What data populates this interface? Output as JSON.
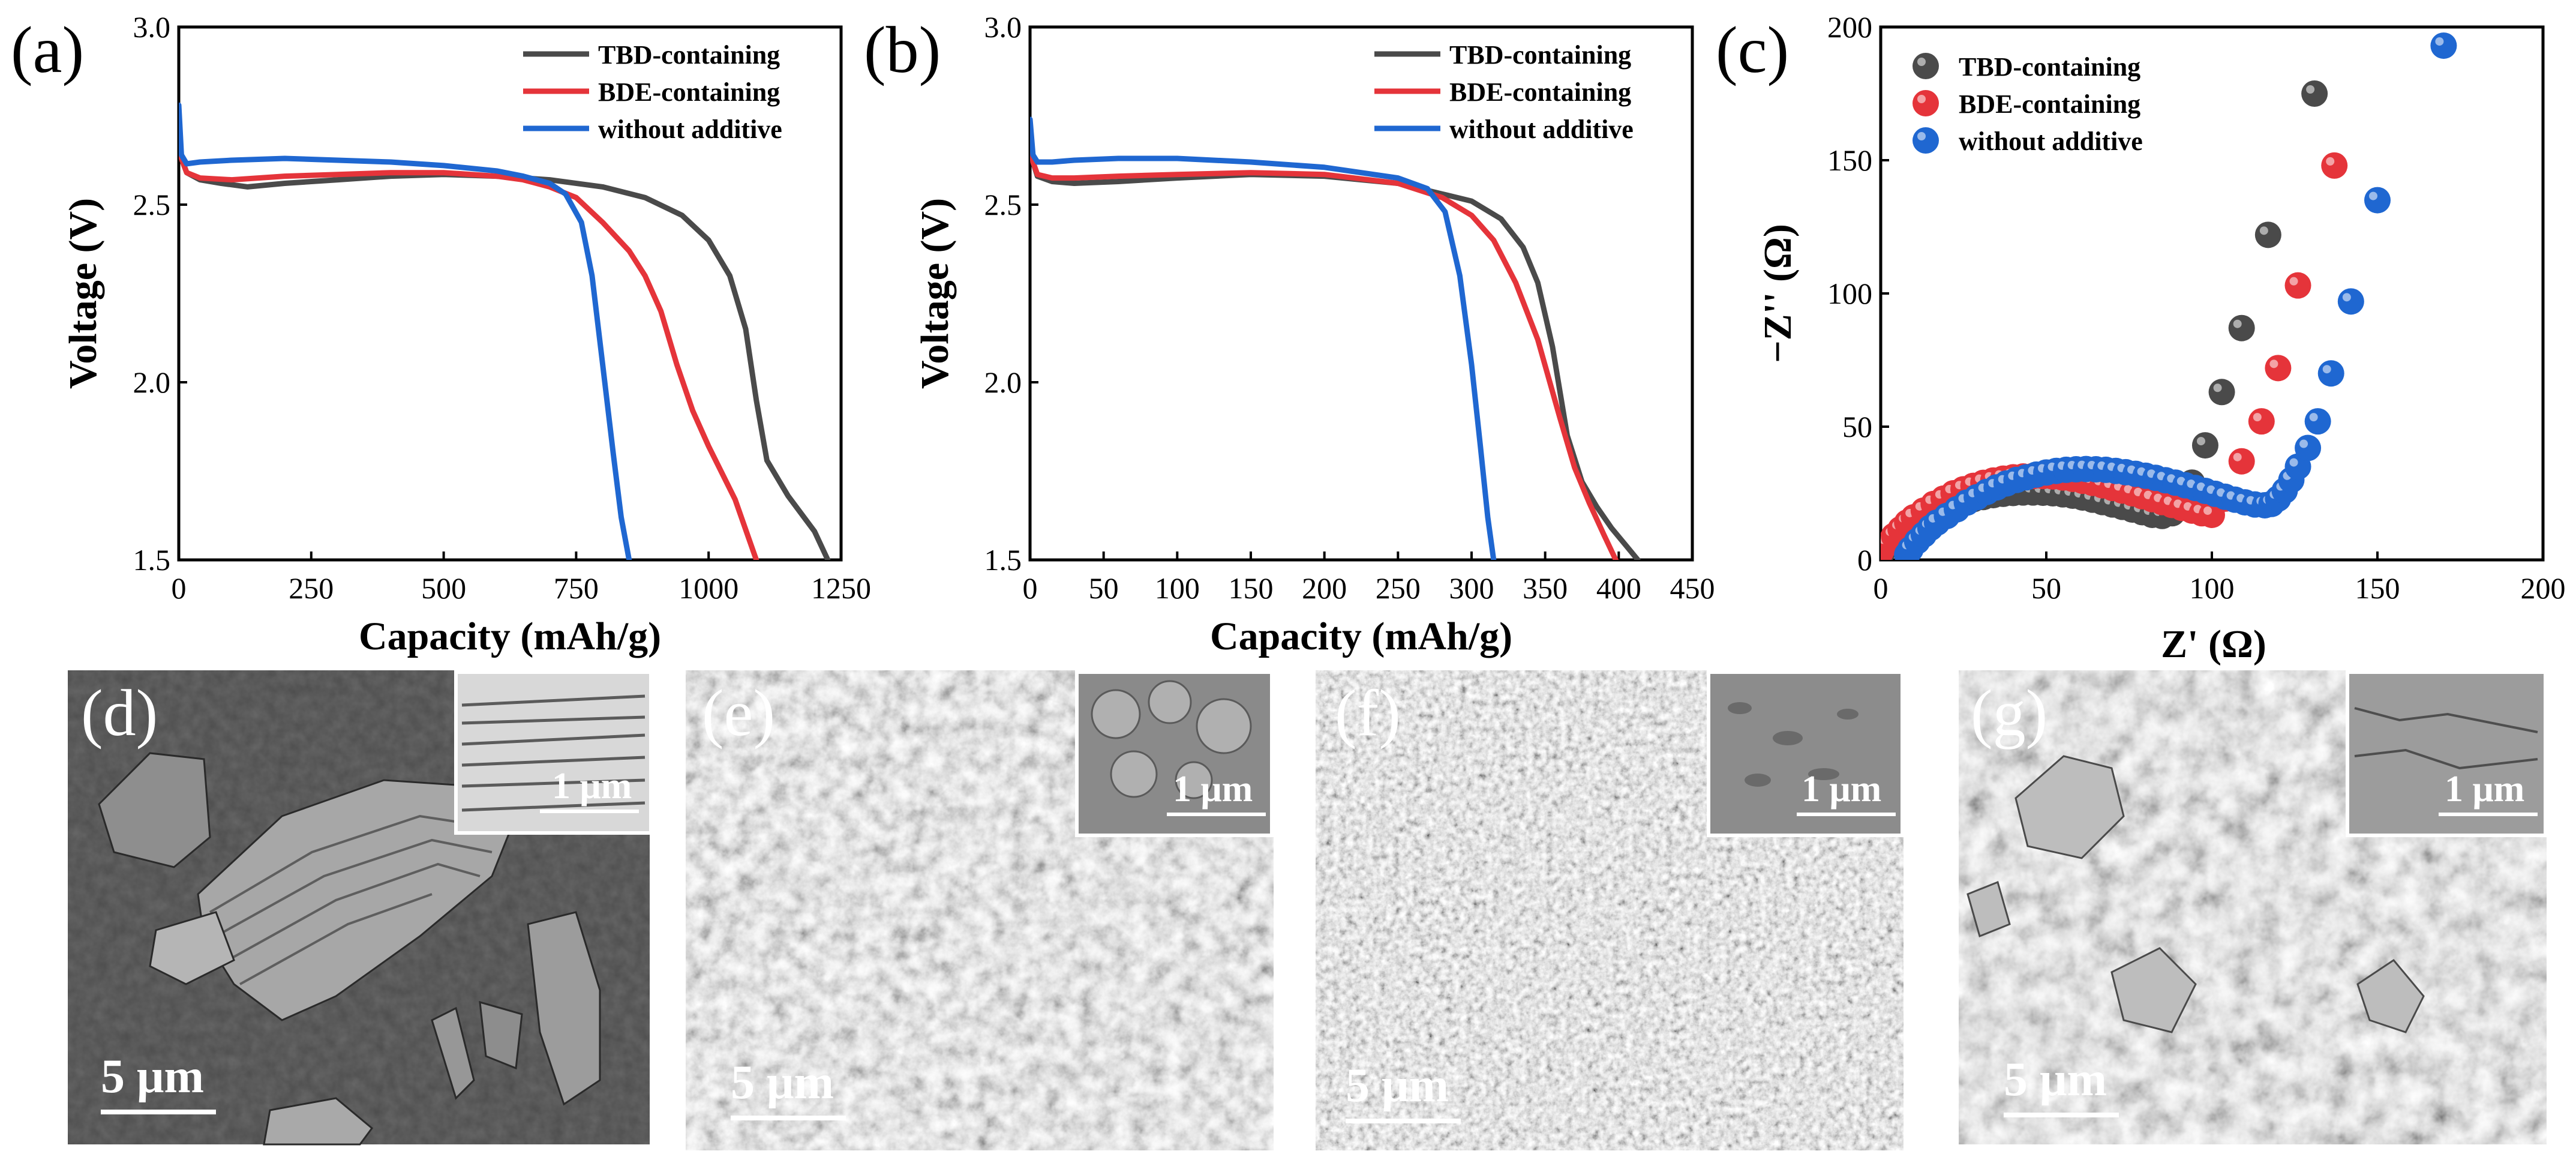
{
  "chart_data": [
    {
      "panel": "(a)",
      "type": "line",
      "xlabel": "Capacity (mAh/g)",
      "ylabel": "Voltage (V)",
      "xlim": [
        0,
        1250
      ],
      "ylim": [
        1.5,
        3.0
      ],
      "xticks": [
        0,
        250,
        500,
        750,
        1000,
        1250
      ],
      "yticks": [
        1.5,
        2.0,
        2.5,
        3.0
      ],
      "legend_position": "top-right",
      "series": [
        {
          "name": "TBD-containing",
          "color": "#4a4a4a",
          "x": [
            0,
            5,
            15,
            40,
            80,
            130,
            200,
            300,
            400,
            500,
            600,
            700,
            800,
            880,
            950,
            1000,
            1040,
            1070,
            1090,
            1110,
            1150,
            1200,
            1225
          ],
          "y": [
            2.75,
            2.63,
            2.59,
            2.57,
            2.56,
            2.55,
            2.56,
            2.57,
            2.58,
            2.585,
            2.58,
            2.57,
            2.55,
            2.52,
            2.47,
            2.4,
            2.3,
            2.15,
            1.95,
            1.78,
            1.68,
            1.58,
            1.5
          ]
        },
        {
          "name": "BDE-containing",
          "color": "#e5343a",
          "x": [
            0,
            5,
            15,
            40,
            100,
            200,
            300,
            400,
            500,
            600,
            650,
            700,
            750,
            800,
            850,
            880,
            910,
            940,
            970,
            1000,
            1050,
            1090
          ],
          "y": [
            2.75,
            2.63,
            2.59,
            2.575,
            2.57,
            2.58,
            2.585,
            2.59,
            2.59,
            2.58,
            2.57,
            2.55,
            2.52,
            2.45,
            2.37,
            2.3,
            2.2,
            2.05,
            1.92,
            1.82,
            1.67,
            1.5
          ]
        },
        {
          "name": "without additive",
          "color": "#1f67d1",
          "x": [
            0,
            5,
            15,
            40,
            100,
            200,
            300,
            400,
            500,
            600,
            650,
            700,
            730,
            760,
            780,
            800,
            820,
            835,
            850
          ],
          "y": [
            2.78,
            2.64,
            2.615,
            2.62,
            2.625,
            2.63,
            2.625,
            2.62,
            2.61,
            2.595,
            2.58,
            2.56,
            2.53,
            2.45,
            2.3,
            2.05,
            1.8,
            1.62,
            1.5
          ]
        }
      ]
    },
    {
      "panel": "(b)",
      "type": "line",
      "xlabel": "Capacity (mAh/g)",
      "ylabel": "Voltage (V)",
      "xlim": [
        0,
        450
      ],
      "ylim": [
        1.5,
        3.0
      ],
      "xticks": [
        0,
        50,
        100,
        150,
        200,
        250,
        300,
        350,
        400,
        450
      ],
      "yticks": [
        1.5,
        2.0,
        2.5,
        3.0
      ],
      "legend_position": "top-right",
      "series": [
        {
          "name": "TBD-containing",
          "color": "#4a4a4a",
          "x": [
            0,
            2,
            5,
            15,
            30,
            60,
            100,
            150,
            200,
            250,
            280,
            300,
            320,
            335,
            345,
            355,
            365,
            375,
            385,
            395,
            405,
            413
          ],
          "y": [
            2.72,
            2.62,
            2.58,
            2.565,
            2.56,
            2.565,
            2.575,
            2.585,
            2.58,
            2.56,
            2.53,
            2.51,
            2.46,
            2.38,
            2.28,
            2.1,
            1.85,
            1.72,
            1.65,
            1.59,
            1.54,
            1.5
          ]
        },
        {
          "name": "BDE-containing",
          "color": "#e5343a",
          "x": [
            0,
            2,
            5,
            15,
            30,
            60,
            100,
            150,
            200,
            250,
            280,
            300,
            315,
            330,
            345,
            360,
            370,
            380,
            390,
            398
          ],
          "y": [
            2.7,
            2.62,
            2.585,
            2.575,
            2.575,
            2.58,
            2.585,
            2.59,
            2.585,
            2.56,
            2.52,
            2.47,
            2.4,
            2.28,
            2.12,
            1.9,
            1.76,
            1.66,
            1.57,
            1.5
          ]
        },
        {
          "name": "without additive",
          "color": "#1f67d1",
          "x": [
            0,
            2,
            5,
            15,
            30,
            60,
            100,
            150,
            200,
            250,
            270,
            282,
            292,
            300,
            306,
            311,
            315
          ],
          "y": [
            2.74,
            2.64,
            2.62,
            2.62,
            2.625,
            2.63,
            2.63,
            2.62,
            2.605,
            2.575,
            2.545,
            2.48,
            2.3,
            2.05,
            1.82,
            1.62,
            1.5
          ]
        }
      ]
    },
    {
      "panel": "(c)",
      "type": "scatter",
      "xlabel": "Z' (Ω)",
      "ylabel": "−Z'' (Ω)",
      "xlim": [
        0,
        200
      ],
      "ylim": [
        0,
        200
      ],
      "xticks": [
        0,
        50,
        100,
        150,
        200
      ],
      "yticks": [
        0,
        50,
        100,
        150,
        200
      ],
      "legend_position": "top-left",
      "series": [
        {
          "name": "TBD-containing",
          "color": "#4a4a4a",
          "radius": 8,
          "x": [
            0,
            2,
            4,
            6,
            8,
            10,
            13,
            16,
            19,
            22,
            25,
            28,
            31,
            34,
            37,
            40,
            43,
            46,
            49,
            52,
            55,
            58,
            61,
            64,
            67,
            70,
            73,
            76,
            79,
            82,
            85,
            88,
            91,
            94,
            98,
            103,
            109,
            117,
            131
          ],
          "y": [
            2,
            5,
            7,
            9,
            11,
            13,
            15,
            17,
            19,
            20.5,
            21.7,
            22.8,
            23.6,
            24.3,
            24.8,
            25.1,
            25.3,
            25.3,
            25.2,
            25,
            24.6,
            24.1,
            23.4,
            22.6,
            21.7,
            20.8,
            19.9,
            18.9,
            17.9,
            16.9,
            16.5,
            17.5,
            22,
            29,
            43,
            63,
            87,
            122,
            175
          ]
        },
        {
          "name": "BDE-containing",
          "color": "#e5343a",
          "radius": 8,
          "x": [
            0,
            2,
            4,
            6,
            8,
            10,
            13,
            16,
            19,
            22,
            25,
            28,
            31,
            34,
            37,
            40,
            43,
            46,
            49,
            52,
            55,
            58,
            61,
            64,
            67,
            70,
            73,
            76,
            79,
            82,
            85,
            88,
            91,
            94,
            97,
            100,
            104,
            109,
            115,
            120,
            126,
            137
          ],
          "y": [
            3,
            6,
            9,
            11.5,
            14,
            16,
            18.5,
            21,
            23,
            25,
            26.5,
            27.8,
            28.9,
            29.8,
            30.5,
            31,
            31.3,
            31.5,
            31.5,
            31.3,
            30.9,
            30.4,
            29.7,
            28.9,
            28,
            27,
            26,
            25,
            23.9,
            22.8,
            21.7,
            20.6,
            19.5,
            18.5,
            17.5,
            16.9,
            23,
            37,
            52,
            72,
            103,
            148
          ]
        },
        {
          "name": "without additive",
          "color": "#1f67d1",
          "radius": 8,
          "x": [
            8,
            9,
            11,
            13,
            15,
            17,
            20,
            23,
            26,
            29,
            32,
            35,
            38,
            41,
            44,
            47,
            50,
            53,
            56,
            59,
            62,
            65,
            68,
            71,
            74,
            77,
            80,
            83,
            86,
            89,
            92,
            95,
            98,
            101,
            104,
            107,
            110,
            113,
            116,
            118,
            120,
            122,
            124,
            126,
            129,
            132,
            136,
            142,
            150,
            170
          ],
          "y": [
            2,
            4,
            7,
            9.5,
            12,
            14,
            16.5,
            19,
            21.5,
            23.5,
            25.5,
            27.2,
            28.7,
            30,
            31,
            32,
            32.8,
            33.4,
            33.8,
            34,
            34.1,
            34,
            33.8,
            33.4,
            32.9,
            32.3,
            31.6,
            30.8,
            29.9,
            29,
            28,
            27,
            25.9,
            24.8,
            23.7,
            22.6,
            21.6,
            20.8,
            20.5,
            21,
            23,
            26,
            30,
            35,
            42,
            52,
            70,
            97,
            135,
            193
          ]
        }
      ]
    }
  ],
  "micrographs": [
    {
      "panel": "(d)",
      "scale_main": "5 μm",
      "scale_inset": "1 μm"
    },
    {
      "panel": "(e)",
      "scale_main": "5 μm",
      "scale_inset": "1 μm"
    },
    {
      "panel": "(f)",
      "scale_main": "5 μm",
      "scale_inset": "1 μm"
    },
    {
      "panel": "(g)",
      "scale_main": "5 μm",
      "scale_inset": "1 μm"
    }
  ]
}
